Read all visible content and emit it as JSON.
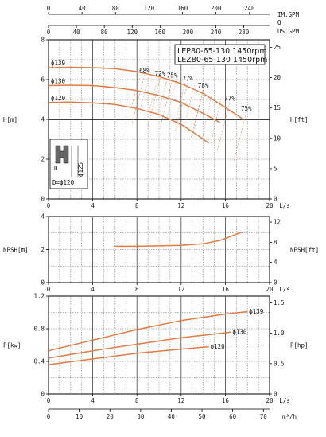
{
  "chart_data": {
    "type": "line",
    "title_lines": [
      "LEP80-65-130 1450rpm",
      "LEZ80-65-130 1450rpm"
    ],
    "top_axes": [
      {
        "label": "IM.GPM",
        "ticks": [
          "0",
          "40",
          "80",
          "120",
          "160",
          "200",
          "240"
        ],
        "max_lps": 20
      },
      {
        "label": "Q",
        "ticks": [],
        "max_lps": 20
      },
      {
        "label": "US.GPM",
        "ticks": [
          "0",
          "40",
          "80",
          "120",
          "160",
          "200",
          "240",
          "280"
        ],
        "max_lps": 20
      }
    ],
    "bottom_axes": [
      {
        "label": "L/s",
        "ticks": [
          "0",
          "4",
          "8",
          "12",
          "16",
          "20"
        ]
      },
      {
        "label": "m³/h",
        "ticks": [
          "0",
          "10",
          "20",
          "30",
          "40",
          "50",
          "60",
          "70"
        ]
      }
    ],
    "panels": [
      {
        "name": "head",
        "ylabel_left": "H[m]",
        "ylabel_right": "H[ft]",
        "xlim": [
          0,
          20
        ],
        "ylim": [
          0,
          8
        ],
        "ylim_right": [
          0,
          26.25
        ],
        "left_ticks": [
          "0",
          "2",
          "4",
          "6",
          "8"
        ],
        "right_ticks": [
          "0",
          "5",
          "10",
          "15",
          "20",
          "25"
        ],
        "x_unit": "L/s",
        "reference_line_y": 4,
        "series": [
          {
            "name": "ϕ139",
            "x": [
              0,
              2,
              4,
              6,
              8,
              10,
              12,
              14,
              16,
              17.5
            ],
            "y": [
              6.6,
              6.62,
              6.6,
              6.55,
              6.4,
              6.15,
              5.8,
              5.3,
              4.6,
              4.05
            ]
          },
          {
            "name": "ϕ130",
            "x": [
              0,
              2,
              4,
              6,
              8,
              10,
              12,
              14,
              15.5
            ],
            "y": [
              5.7,
              5.72,
              5.7,
              5.6,
              5.45,
              5.2,
              4.85,
              4.3,
              3.85
            ]
          },
          {
            "name": "ϕ120",
            "x": [
              0,
              2,
              4,
              6,
              8,
              10,
              12,
              13.5,
              14.5
            ],
            "y": [
              4.85,
              4.87,
              4.83,
              4.75,
              4.55,
              4.25,
              3.75,
              3.2,
              2.8
            ]
          }
        ],
        "efficiency_labels": [
          {
            "text": "68%",
            "x": 8.7,
            "y": 6.35
          },
          {
            "text": "72%",
            "x": 10.1,
            "y": 6.2
          },
          {
            "text": "75%",
            "x": 11.2,
            "y": 6.1
          },
          {
            "text": "77%",
            "x": 12.6,
            "y": 5.95
          },
          {
            "text": "78%",
            "x": 14.0,
            "y": 5.6
          },
          {
            "text": "77%",
            "x": 16.4,
            "y": 4.95
          },
          {
            "text": "75%",
            "x": 17.9,
            "y": 4.45
          }
        ],
        "inset": {
          "labels": [
            "D",
            "ϕ125",
            "D=ϕ120"
          ]
        }
      },
      {
        "name": "npsh",
        "ylabel_left": "NPSH[m]",
        "ylabel_right": "NPSH[ft]",
        "xlim": [
          0,
          20
        ],
        "ylim": [
          0,
          4
        ],
        "ylim_right": [
          0,
          13.12
        ],
        "left_ticks": [
          "0",
          "2",
          "4"
        ],
        "right_ticks": [
          "0",
          "4",
          "8",
          "12"
        ],
        "x_unit": "L/s",
        "series": [
          {
            "name": "NPSH",
            "x": [
              6,
              8,
              10,
              12,
              14,
              15.5,
              16.5,
              17.5
            ],
            "y": [
              2.2,
              2.2,
              2.22,
              2.25,
              2.35,
              2.55,
              2.8,
              3.05
            ]
          }
        ]
      },
      {
        "name": "power",
        "ylabel_left": "P[kw]",
        "ylabel_right": "P[hp]",
        "xlim": [
          0,
          20
        ],
        "ylim": [
          0,
          1.2
        ],
        "ylim_right": [
          0,
          1.61
        ],
        "left_ticks": [
          "0",
          "0.4",
          "0.8",
          "1.2"
        ],
        "right_ticks": [
          "0",
          "0.5",
          "1.0",
          "1.5"
        ],
        "x_unit": "L/s",
        "series": [
          {
            "name": "ϕ139",
            "x": [
              0,
              4,
              8,
              12,
              16,
              18
            ],
            "y": [
              0.53,
              0.66,
              0.79,
              0.9,
              0.98,
              1.01
            ]
          },
          {
            "name": "ϕ130",
            "x": [
              0,
              4,
              8,
              12,
              16,
              16.5
            ],
            "y": [
              0.44,
              0.53,
              0.61,
              0.69,
              0.75,
              0.76
            ]
          },
          {
            "name": "ϕ120",
            "x": [
              0,
              4,
              8,
              12,
              14.5
            ],
            "y": [
              0.36,
              0.43,
              0.5,
              0.55,
              0.58
            ]
          }
        ]
      }
    ]
  },
  "colors": {
    "curve": "#e07c45",
    "grid": "#444444",
    "hatch": "#e08050",
    "axis": "#000000"
  }
}
